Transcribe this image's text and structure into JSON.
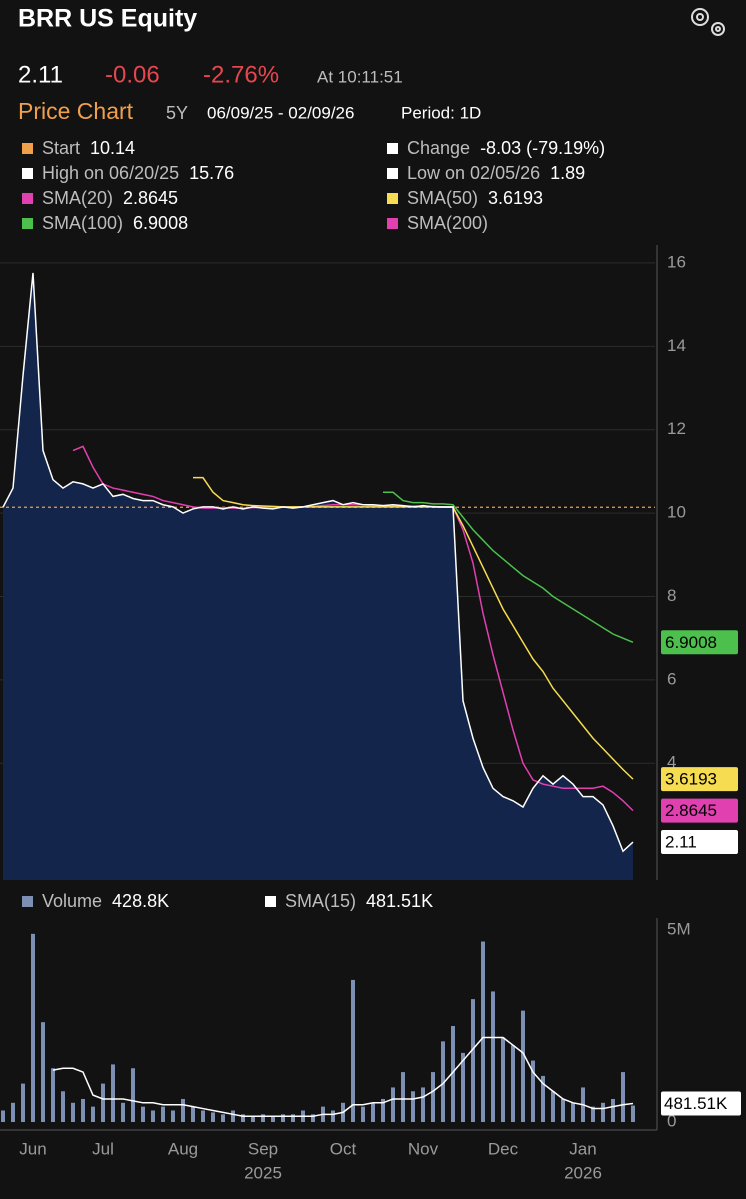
{
  "header": {
    "title": "BRR US Equity",
    "price": "2.11",
    "change": "-0.06",
    "change_pct": "-2.76%",
    "time": "At 10:11:51",
    "chart_label": "Price Chart",
    "range": "5Y",
    "dates": "06/09/25 - 02/09/26",
    "period": "Period: 1D"
  },
  "chart_data": [
    {
      "type": "line",
      "stats": [
        {
          "label": "Start",
          "value": 10.14,
          "color": "#f0a04b"
        },
        {
          "label": "Change",
          "value": "-8.03 (-79.19%)",
          "color": "#ffffff"
        },
        {
          "label": "High on 06/20/25",
          "value": 15.76,
          "color": "#ffffff"
        },
        {
          "label": "Low on 02/05/26",
          "value": 1.89,
          "color": "#ffffff"
        }
      ],
      "color": "#ffffff",
      "fill": "#13254a",
      "values": [
        10.14,
        10.6,
        13.3,
        15.76,
        11.5,
        10.8,
        10.6,
        10.75,
        10.7,
        10.6,
        10.7,
        10.4,
        10.45,
        10.35,
        10.3,
        10.3,
        10.2,
        10.15,
        10.0,
        10.1,
        10.15,
        10.15,
        10.1,
        10.15,
        10.1,
        10.15,
        10.12,
        10.1,
        10.15,
        10.12,
        10.15,
        10.2,
        10.25,
        10.3,
        10.2,
        10.25,
        10.2,
        10.2,
        10.18,
        10.2,
        10.18,
        10.15,
        10.18,
        10.15,
        10.15,
        10.15,
        5.5,
        4.6,
        3.9,
        3.4,
        3.2,
        3.1,
        2.95,
        3.4,
        3.7,
        3.5,
        3.7,
        3.5,
        3.2,
        3.2,
        3.0,
        2.5,
        1.89,
        2.11
      ],
      "series": [
        {
          "name": "SMA(20)",
          "color": "#e040b0",
          "legend_value": 2.8645,
          "values": [
            null,
            null,
            null,
            null,
            null,
            null,
            null,
            11.5,
            11.6,
            11.1,
            10.7,
            10.6,
            10.55,
            10.5,
            10.45,
            10.4,
            10.3,
            10.25,
            10.2,
            10.15,
            10.12,
            10.12,
            10.13,
            10.12,
            10.12,
            10.13,
            10.14,
            10.13,
            10.14,
            10.15,
            10.15,
            10.16,
            10.18,
            10.2,
            10.2,
            10.2,
            10.2,
            10.18,
            10.18,
            10.18,
            10.17,
            10.17,
            10.16,
            10.16,
            10.15,
            10.15,
            9.6,
            8.8,
            7.6,
            6.6,
            5.7,
            4.8,
            4.0,
            3.6,
            3.5,
            3.45,
            3.4,
            3.4,
            3.4,
            3.4,
            3.45,
            3.3,
            3.1,
            2.8645
          ]
        },
        {
          "name": "SMA(50)",
          "color": "#f5dc50",
          "legend_value": 3.6193,
          "values": [
            null,
            null,
            null,
            null,
            null,
            null,
            null,
            null,
            null,
            null,
            null,
            null,
            null,
            null,
            null,
            null,
            null,
            null,
            null,
            10.85,
            10.85,
            10.5,
            10.3,
            10.25,
            10.2,
            10.18,
            10.17,
            10.16,
            10.15,
            10.15,
            10.15,
            10.15,
            10.15,
            10.15,
            10.15,
            10.15,
            10.15,
            10.15,
            10.15,
            10.15,
            10.15,
            10.15,
            10.15,
            10.15,
            10.14,
            10.14,
            9.7,
            9.2,
            8.7,
            8.2,
            7.7,
            7.3,
            6.9,
            6.5,
            6.2,
            5.8,
            5.5,
            5.2,
            4.9,
            4.6,
            4.35,
            4.1,
            3.85,
            3.6193
          ]
        },
        {
          "name": "SMA(100)",
          "color": "#4cbf4c",
          "legend_value": 6.9008,
          "values": [
            null,
            null,
            null,
            null,
            null,
            null,
            null,
            null,
            null,
            null,
            null,
            null,
            null,
            null,
            null,
            null,
            null,
            null,
            null,
            null,
            null,
            null,
            null,
            null,
            null,
            null,
            null,
            null,
            null,
            null,
            null,
            null,
            null,
            null,
            null,
            null,
            null,
            null,
            10.5,
            10.5,
            10.3,
            10.25,
            10.25,
            10.22,
            10.22,
            10.2,
            9.9,
            9.6,
            9.35,
            9.1,
            8.9,
            8.7,
            8.5,
            8.35,
            8.2,
            8.0,
            7.85,
            7.7,
            7.55,
            7.4,
            7.25,
            7.1,
            7.0,
            6.9008
          ]
        },
        {
          "name": "SMA(200)",
          "color": "#e040b0",
          "values": [
            null,
            null,
            null,
            null,
            null,
            null,
            null,
            null,
            null,
            null,
            null,
            null,
            null,
            null,
            null,
            null,
            null,
            null,
            null,
            null,
            null,
            null,
            null,
            null,
            null,
            null,
            null,
            null,
            null,
            null,
            null,
            null,
            null,
            null,
            null,
            null,
            null,
            null,
            null,
            null,
            null,
            null,
            null,
            null,
            null,
            null,
            null,
            null,
            null,
            null,
            null,
            null,
            null,
            null,
            null,
            null,
            null,
            null,
            null,
            null,
            null,
            null,
            null,
            null
          ]
        }
      ],
      "ylim": [
        1.2,
        16.43
      ],
      "yticks": [
        4,
        6,
        8,
        10,
        12,
        14,
        16
      ],
      "grid": true
    },
    {
      "type": "bar",
      "categories": [
        null,
        null,
        null,
        "Jun",
        null,
        null,
        null,
        null,
        null,
        null,
        "Jul",
        null,
        null,
        null,
        null,
        null,
        null,
        null,
        "Aug",
        null,
        null,
        null,
        null,
        null,
        null,
        null,
        "Sep",
        null,
        null,
        null,
        null,
        null,
        null,
        null,
        "Oct",
        null,
        null,
        null,
        null,
        null,
        null,
        null,
        "Nov",
        null,
        null,
        null,
        null,
        null,
        null,
        null,
        "Dec",
        null,
        null,
        null,
        null,
        null,
        null,
        null,
        "Jan",
        null,
        null,
        null,
        null,
        null
      ],
      "year_labels": [
        "2025",
        "2026"
      ],
      "series": [
        {
          "name": "Volume",
          "color": "#7d8fb3",
          "value_label": "428.8K",
          "values": [
            300000,
            500000,
            1000000,
            4900000,
            2600000,
            1400000,
            800000,
            500000,
            600000,
            400000,
            1000000,
            1500000,
            500000,
            1400000,
            400000,
            300000,
            400000,
            300000,
            600000,
            400000,
            300000,
            250000,
            200000,
            300000,
            200000,
            150000,
            200000,
            150000,
            200000,
            200000,
            300000,
            200000,
            400000,
            300000,
            500000,
            3700000,
            400000,
            500000,
            600000,
            900000,
            1300000,
            800000,
            900000,
            1300000,
            2100000,
            2500000,
            1800000,
            3200000,
            4700000,
            3400000,
            2200000,
            2000000,
            2900000,
            1600000,
            1200000,
            800000,
            600000,
            500000,
            900000,
            400000,
            500000,
            600000,
            1300000,
            428800
          ]
        },
        {
          "name": "SMA(15)",
          "type": "line",
          "color": "#ffffff",
          "value_label": "481.51K",
          "values": [
            null,
            null,
            null,
            null,
            null,
            1350000,
            1400000,
            1400000,
            1300000,
            700000,
            600000,
            600000,
            600000,
            550000,
            500000,
            500000,
            450000,
            450000,
            450000,
            400000,
            350000,
            300000,
            250000,
            200000,
            150000,
            150000,
            150000,
            150000,
            150000,
            150000,
            150000,
            150000,
            200000,
            200000,
            250000,
            450000,
            450000,
            500000,
            500000,
            600000,
            600000,
            600000,
            650000,
            800000,
            1000000,
            1300000,
            1600000,
            1900000,
            2200000,
            2200000,
            2200000,
            2000000,
            1800000,
            1300000,
            1000000,
            800000,
            600000,
            500000,
            450000,
            350000,
            350000,
            400000,
            450000,
            481510
          ]
        }
      ],
      "ylim": [
        0,
        5000000
      ],
      "yticks": [
        0,
        {
          "value": 5000000,
          "label": "5M"
        }
      ]
    }
  ]
}
